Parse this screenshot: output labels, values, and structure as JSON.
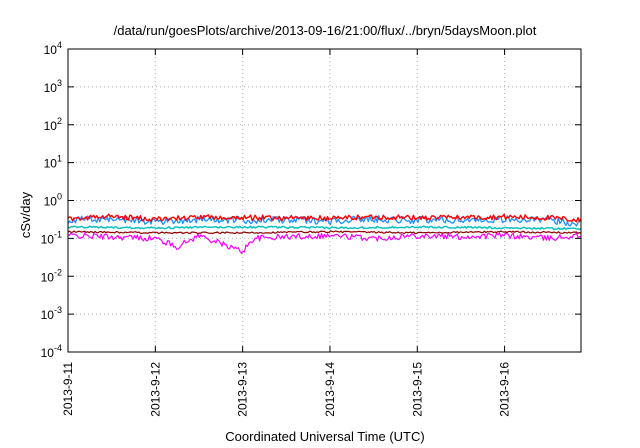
{
  "chart_data": {
    "type": "area",
    "title": "/data/run/goesPlots/archive/2013-09-16/21:00/flux/../bryn/5daysMoon.plot",
    "xlabel": "Coordinated Universal Time (UTC)",
    "ylabel": "cSv/day",
    "yscale": "log",
    "ylim": [
      0.0001,
      10000
    ],
    "y_ticks": [
      {
        "base": "10",
        "exp": "-4",
        "value": 0.0001
      },
      {
        "base": "10",
        "exp": "-3",
        "value": 0.001
      },
      {
        "base": "10",
        "exp": "-2",
        "value": 0.01
      },
      {
        "base": "10",
        "exp": "-1",
        "value": 0.1
      },
      {
        "base": "10",
        "exp": "0",
        "value": 1
      },
      {
        "base": "10",
        "exp": "1",
        "value": 10
      },
      {
        "base": "10",
        "exp": "2",
        "value": 100
      },
      {
        "base": "10",
        "exp": "3",
        "value": 1000
      },
      {
        "base": "10",
        "exp": "4",
        "value": 10000
      }
    ],
    "xlim": [
      "2013-09-11 00:00",
      "2013-09-16 21:00"
    ],
    "x_ticks": [
      "2013-9-11",
      "2013-9-12",
      "2013-9-13",
      "2013-9-14",
      "2013-9-15",
      "2013-9-16"
    ],
    "grid": true,
    "series": [
      {
        "color": "#ff00ff",
        "x": [
          "2013-09-11 00:00",
          "2013-09-11 12:00",
          "2013-09-12 00:00",
          "2013-09-12 06:00",
          "2013-09-12 12:00",
          "2013-09-13 00:00",
          "2013-09-13 03:00",
          "2013-09-13 12:00",
          "2013-09-14 00:00",
          "2013-09-14 12:00",
          "2013-09-15 00:00",
          "2013-09-15 12:00",
          "2013-09-16 00:00",
          "2013-09-16 12:00",
          "2013-09-16 21:00"
        ],
        "values": [
          0.12,
          0.11,
          0.1,
          0.06,
          0.12,
          0.045,
          0.1,
          0.11,
          0.12,
          0.1,
          0.12,
          0.11,
          0.12,
          0.1,
          0.12
        ]
      },
      {
        "color": "#8b0000",
        "x": [
          "2013-09-11 00:00",
          "2013-09-12 00:00",
          "2013-09-13 00:00",
          "2013-09-14 00:00",
          "2013-09-15 00:00",
          "2013-09-16 00:00",
          "2013-09-16 21:00"
        ],
        "values": [
          0.15,
          0.14,
          0.14,
          0.15,
          0.14,
          0.15,
          0.14
        ]
      },
      {
        "color": "#00bfbf",
        "x": [
          "2013-09-11 00:00",
          "2013-09-12 00:00",
          "2013-09-13 00:00",
          "2013-09-14 00:00",
          "2013-09-15 00:00",
          "2013-09-16 00:00",
          "2013-09-16 21:00"
        ],
        "values": [
          0.2,
          0.19,
          0.2,
          0.19,
          0.2,
          0.19,
          0.18
        ]
      },
      {
        "color": "#1e90ff",
        "x": [
          "2013-09-11 00:00",
          "2013-09-11 12:00",
          "2013-09-12 00:00",
          "2013-09-12 12:00",
          "2013-09-13 00:00",
          "2013-09-13 12:00",
          "2013-09-14 00:00",
          "2013-09-14 12:00",
          "2013-09-15 00:00",
          "2013-09-15 12:00",
          "2013-09-16 00:00",
          "2013-09-16 12:00",
          "2013-09-16 21:00"
        ],
        "values": [
          0.3,
          0.33,
          0.28,
          0.32,
          0.3,
          0.31,
          0.29,
          0.33,
          0.3,
          0.31,
          0.32,
          0.3,
          0.25
        ]
      },
      {
        "color": "#ff0000",
        "x": [
          "2013-09-11 00:00",
          "2013-09-11 12:00",
          "2013-09-12 00:00",
          "2013-09-12 12:00",
          "2013-09-13 00:00",
          "2013-09-13 12:00",
          "2013-09-14 00:00",
          "2013-09-14 12:00",
          "2013-09-15 00:00",
          "2013-09-15 12:00",
          "2013-09-16 00:00",
          "2013-09-16 12:00",
          "2013-09-16 21:00"
        ],
        "values": [
          0.34,
          0.38,
          0.32,
          0.36,
          0.35,
          0.35,
          0.34,
          0.37,
          0.35,
          0.36,
          0.37,
          0.35,
          0.3
        ]
      }
    ]
  }
}
